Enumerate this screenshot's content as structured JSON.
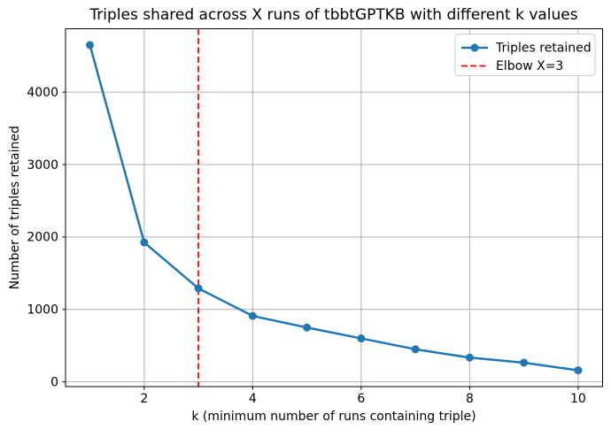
{
  "chart_data": {
    "type": "line",
    "title": "Triples shared across X runs of tbbtGPTKB with different k values",
    "xlabel": "k (minimum number of runs containing triple)",
    "ylabel": "Number of triples retained",
    "x": [
      1,
      2,
      3,
      4,
      5,
      6,
      7,
      8,
      9,
      10
    ],
    "series": [
      {
        "name": "Triples retained",
        "values": [
          4650,
          1925,
          1290,
          910,
          750,
          600,
          450,
          335,
          265,
          160
        ],
        "color": "#1f77b4",
        "marker": "circle",
        "line_style": "solid"
      }
    ],
    "vline": {
      "name": "Elbow X=3",
      "x": 3,
      "color": "#ff0000",
      "line_style": "dashed"
    },
    "xticks": [
      2,
      4,
      6,
      8,
      10
    ],
    "yticks": [
      0,
      1000,
      2000,
      3000,
      4000
    ],
    "xlim": [
      0.55,
      10.45
    ],
    "ylim": [
      -65,
      4875
    ],
    "grid": true,
    "legend_position": "upper right",
    "legend": [
      "Triples retained",
      "Elbow X=3"
    ]
  },
  "colors": {
    "series_blue": "#1f77b4",
    "elbow_red": "#ff0000",
    "grid_gray": "#b0b0b0",
    "legend_border": "#cccccc"
  }
}
